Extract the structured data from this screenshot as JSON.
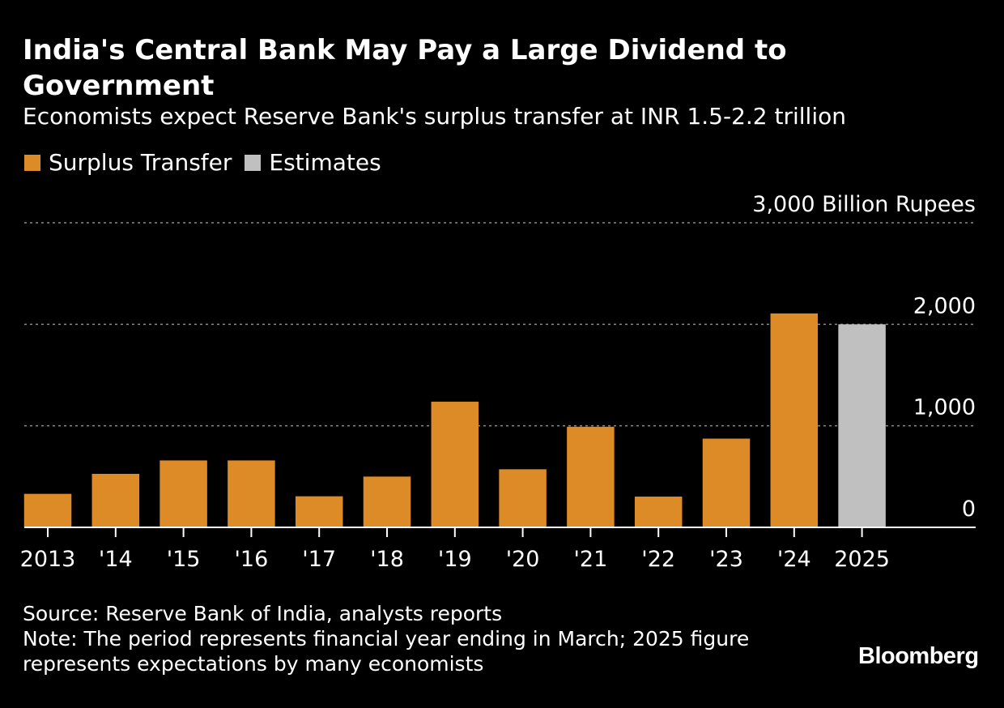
{
  "header": {
    "title": "India's Central Bank May Pay a Large Dividend to Government",
    "subtitle": "Economists expect Reserve Bank's surplus transfer at INR 1.5-2.2 trillion"
  },
  "legend": [
    {
      "label": "Surplus Transfer",
      "color": "#DD8B27"
    },
    {
      "label": "Estimates",
      "color": "#C0C0C0"
    }
  ],
  "chart_data": {
    "type": "bar",
    "title": "India's Central Bank May Pay a Large Dividend to Government",
    "unit_label": "3,000 Billion Rupees",
    "categories": [
      "2013",
      "'14",
      "'15",
      "'16",
      "'17",
      "'18",
      "'19",
      "'20",
      "'21",
      "'22",
      "'23",
      "'24",
      "2025"
    ],
    "series": [
      {
        "name": "Surplus Transfer",
        "color": "#DD8B27",
        "values": [
          330,
          527,
          659,
          659,
          306,
          500,
          1238,
          572,
          991,
          303,
          874,
          2107,
          null
        ]
      },
      {
        "name": "Estimates",
        "color": "#C0C0C0",
        "values": [
          null,
          null,
          null,
          null,
          null,
          null,
          null,
          null,
          null,
          null,
          null,
          null,
          2000
        ]
      }
    ],
    "yticks": [
      0,
      1000,
      2000,
      3000
    ],
    "ytick_labels": [
      "0",
      "1,000",
      "2,000",
      "3,000 Billion Rupees"
    ],
    "ylim": [
      0,
      3000
    ],
    "xlabel": "",
    "ylabel": "Billion Rupees",
    "grid": true
  },
  "footer": {
    "source": "Source: Reserve Bank of India, analysts reports",
    "note_line1": "Note: The period represents financial year ending in March; 2025 figure",
    "note_line2": "represents expectations by many economists",
    "brand": "Bloomberg"
  }
}
